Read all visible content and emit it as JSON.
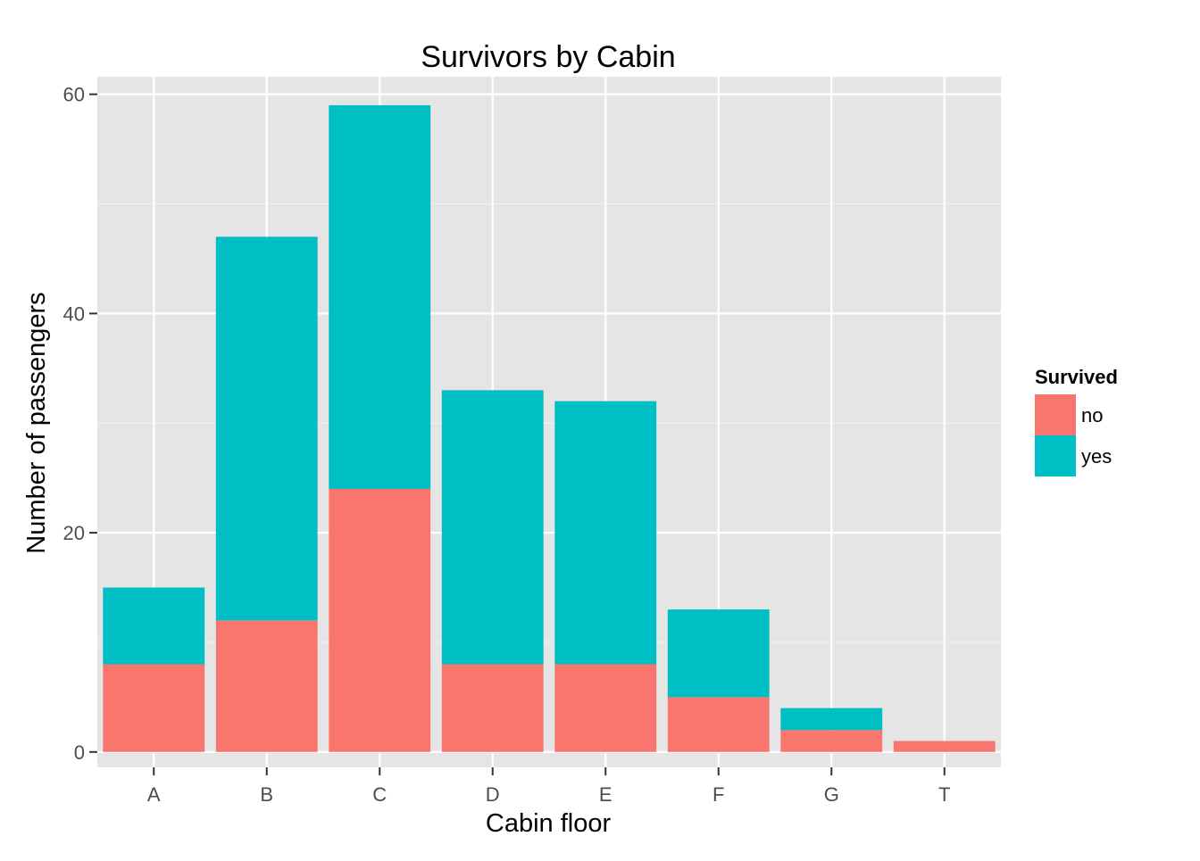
{
  "chart_data": {
    "type": "bar",
    "stacked": true,
    "title": "Survivors by Cabin",
    "xlabel": "Cabin floor",
    "ylabel": "Number of passengers",
    "categories": [
      "A",
      "B",
      "C",
      "D",
      "E",
      "F",
      "G",
      "T"
    ],
    "series": [
      {
        "name": "no",
        "color": "#F8766D",
        "values": [
          8,
          12,
          24,
          8,
          8,
          5,
          2,
          1
        ]
      },
      {
        "name": "yes",
        "color": "#00BFC4",
        "values": [
          7,
          35,
          35,
          25,
          24,
          8,
          2,
          0
        ]
      }
    ],
    "ylim": [
      -1.4,
      60
    ],
    "yticks": [
      0,
      20,
      40,
      60
    ],
    "grid": true,
    "legend": {
      "title": "Survived",
      "placement": "right"
    },
    "colors": {
      "panel_background": "#E5E5E5",
      "grid_major": "#FFFFFF",
      "grid_minor": "#F2F2F2",
      "tick_text": "#4D4D4D"
    }
  }
}
